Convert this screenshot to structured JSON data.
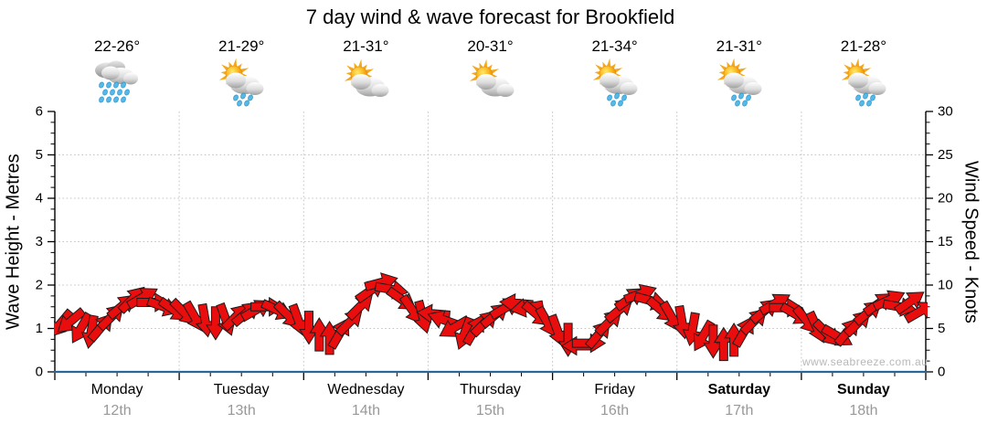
{
  "title": "7 day wind & wave forecast for Brookfield",
  "watermark": "www.seabreeze.com.au",
  "axes": {
    "left_label": "Wave Height - Metres",
    "right_label": "Wind Speed - Knots",
    "left_ticks": [
      "0",
      "1",
      "2",
      "3",
      "4",
      "5",
      "6"
    ],
    "right_ticks": [
      "0",
      "5",
      "10",
      "15",
      "20",
      "25",
      "30"
    ]
  },
  "days": [
    {
      "name": "Monday",
      "date": "12th",
      "temp": "22-26°",
      "icon": "rain",
      "bold": false
    },
    {
      "name": "Tuesday",
      "date": "13th",
      "temp": "21-29°",
      "icon": "sun-cloud-rain",
      "bold": false
    },
    {
      "name": "Wednesday",
      "date": "14th",
      "temp": "21-31°",
      "icon": "sun-cloud",
      "bold": false
    },
    {
      "name": "Thursday",
      "date": "15th",
      "temp": "20-31°",
      "icon": "sun-cloud",
      "bold": false
    },
    {
      "name": "Friday",
      "date": "16th",
      "temp": "21-34°",
      "icon": "sun-cloud-rain",
      "bold": false
    },
    {
      "name": "Saturday",
      "date": "17th",
      "temp": "21-31°",
      "icon": "sun-cloud-rain",
      "bold": true
    },
    {
      "name": "Sunday",
      "date": "18th",
      "temp": "21-28°",
      "icon": "sun-cloud-rain",
      "bold": true
    }
  ],
  "colors": {
    "arrow": "#e90d0d",
    "arrow_outline": "#1c1c1c",
    "x_axis_line": "#2a6699",
    "y_axis_line": "#000000",
    "grid": "#c4c4c4",
    "tick": "#000000",
    "date_text": "#999999",
    "watermark_text": "#b8b8b8"
  },
  "chart_data": {
    "type": "wind-arrows",
    "title": "7 day wind & wave forecast for Brookfield",
    "x_unit": "hours from Monday 00:00",
    "x_range": [
      0,
      168
    ],
    "x_categories": [
      "Monday 12th",
      "Tuesday 13th",
      "Wednesday 14th",
      "Thursday 15th",
      "Friday 16th",
      "Saturday 17th",
      "Sunday 18th"
    ],
    "left_axis": {
      "label": "Wave Height - Metres",
      "range": [
        0,
        6
      ],
      "major_step": 1,
      "minor_step": 0.25
    },
    "right_axis": {
      "label": "Wind Speed - Knots",
      "range": [
        0,
        30
      ],
      "major_step": 5,
      "minor_step": 1.25
    },
    "grid": {
      "h_lines_metres": [
        1,
        2,
        3,
        4,
        5
      ],
      "v_lines_at_day_boundaries": true,
      "style": "dotted"
    },
    "series_note": "arrow vertical position = wind speed (knots, right axis); arrow rotation = wind direction (deg, 0=east/right, 90=down/south-screen, -90=up)",
    "start_hour": 1,
    "step_hours": 2,
    "knots": [
      5.5,
      5.8,
      5.0,
      4.6,
      5.2,
      6.4,
      7.6,
      8.4,
      8.6,
      8.0,
      7.5,
      7.1,
      6.8,
      6.3,
      5.9,
      5.6,
      6.0,
      6.4,
      6.8,
      7.2,
      7.5,
      7.1,
      6.5,
      5.9,
      5.1,
      4.3,
      3.9,
      4.5,
      5.8,
      7.6,
      9.4,
      10.3,
      9.5,
      8.3,
      7.1,
      6.3,
      6.7,
      6.0,
      5.1,
      4.4,
      4.9,
      5.7,
      6.6,
      7.4,
      7.9,
      7.4,
      6.6,
      5.7,
      4.7,
      3.7,
      3.0,
      3.3,
      4.4,
      5.8,
      7.2,
      8.5,
      9.0,
      8.2,
      7.1,
      6.3,
      5.7,
      4.9,
      4.1,
      3.5,
      3.2,
      3.7,
      4.7,
      5.9,
      7.1,
      7.9,
      7.4,
      6.6,
      5.9,
      5.1,
      4.4,
      4.1,
      4.7,
      5.7,
      6.9,
      7.9,
      8.3,
      7.5,
      8.1,
      7.0
    ],
    "dir_deg": [
      130,
      140,
      120,
      100,
      -50,
      -45,
      -40,
      -45,
      -30,
      0,
      20,
      35,
      45,
      60,
      80,
      90,
      70,
      -45,
      -40,
      -30,
      0,
      25,
      45,
      70,
      90,
      -90,
      -90,
      -60,
      -45,
      -45,
      -35,
      -15,
      10,
      35,
      55,
      75,
      185,
      200,
      150,
      110,
      -60,
      -45,
      -40,
      -30,
      185,
      170,
      40,
      60,
      70,
      90,
      180,
      0,
      -50,
      -45,
      -40,
      -35,
      -20,
      15,
      40,
      60,
      80,
      100,
      120,
      90,
      -90,
      -90,
      -60,
      -45,
      -40,
      -30,
      0,
      30,
      50,
      65,
      45,
      30,
      -50,
      -45,
      -40,
      -35,
      -25,
      10,
      -35,
      -30
    ]
  }
}
